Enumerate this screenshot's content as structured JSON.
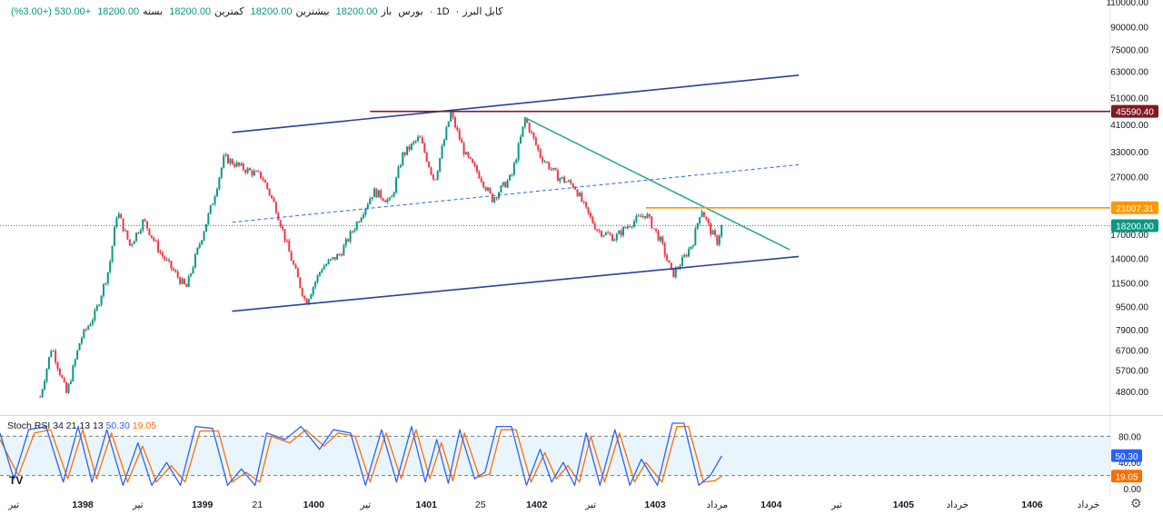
{
  "header": {
    "symbol": "کابل البرز",
    "interval": "1D",
    "exchange": "بورس",
    "open_label": "باز",
    "open_value": "18200.00",
    "high_label": "بیشترین",
    "high_value": "18200.00",
    "low_label": "کمترین",
    "low_value": "18200.00",
    "close_label": "بسته",
    "close_value": "18200.00",
    "change": "+530.00 (+3.00%)"
  },
  "colors": {
    "up": "#089981",
    "down": "#f23645",
    "channel": "#2b3fa0",
    "resistance": "#801922",
    "trend": "#22ab94",
    "horizontal_orange": "#ff9800",
    "k_line": "#2962ff",
    "d_line": "#ff6d00",
    "stoch_band": "#e3f2fd"
  },
  "chart_data": [
    {
      "type": "candlestick",
      "scale": "log",
      "ylim": [
        4000,
        110000
      ],
      "y_ticks": [
        {
          "value": 110000,
          "label": "110000.00"
        },
        {
          "value": 90000,
          "label": "90000.00"
        },
        {
          "value": 75000,
          "label": "75000.00"
        },
        {
          "value": 63000,
          "label": "63000.00"
        },
        {
          "value": 51000,
          "label": "51000.00"
        },
        {
          "value": 41000,
          "label": "41000.00"
        },
        {
          "value": 33000,
          "label": "33000.00"
        },
        {
          "value": 27000,
          "label": "27000.00"
        },
        {
          "value": 17000,
          "label": "17000.00"
        },
        {
          "value": 14000,
          "label": "14000.00"
        },
        {
          "value": 11500,
          "label": "11500.00"
        },
        {
          "value": 9500,
          "label": "9500.00"
        },
        {
          "value": 7900,
          "label": "7900.00"
        },
        {
          "value": 6700,
          "label": "6700.00"
        },
        {
          "value": 5700,
          "label": "5700.00"
        },
        {
          "value": 4800,
          "label": "4800.00"
        }
      ],
      "price_badges": [
        {
          "value": 45590.4,
          "label": "45590.40",
          "color": "#801922"
        },
        {
          "value": 21007.31,
          "label": "21007.31",
          "color": "#ff9800"
        },
        {
          "value": 18200.0,
          "label": "18200.00",
          "color": "#089981"
        }
      ],
      "x_ticks": [
        {
          "t": 0.012,
          "label": "تیر",
          "bold": false
        },
        {
          "t": 0.072,
          "label": "1398",
          "bold": true
        },
        {
          "t": 0.12,
          "label": "تیر",
          "bold": false
        },
        {
          "t": 0.176,
          "label": "1399",
          "bold": true
        },
        {
          "t": 0.224,
          "label": "21",
          "bold": false
        },
        {
          "t": 0.273,
          "label": "1400",
          "bold": true
        },
        {
          "t": 0.318,
          "label": "تیر",
          "bold": false
        },
        {
          "t": 0.371,
          "label": "1401",
          "bold": true
        },
        {
          "t": 0.418,
          "label": "25",
          "bold": false
        },
        {
          "t": 0.467,
          "label": "1402",
          "bold": true
        },
        {
          "t": 0.514,
          "label": "تیر",
          "bold": false
        },
        {
          "t": 0.57,
          "label": "1403",
          "bold": true
        },
        {
          "t": 0.624,
          "label": "مرداد",
          "bold": false
        },
        {
          "t": 0.671,
          "label": "1404",
          "bold": true
        },
        {
          "t": 0.728,
          "label": "تیر",
          "bold": false
        },
        {
          "t": 0.786,
          "label": "1405",
          "bold": true
        },
        {
          "t": 0.833,
          "label": "خرداد",
          "bold": false
        },
        {
          "t": 0.898,
          "label": "1406",
          "bold": true
        },
        {
          "t": 0.947,
          "label": "خرداد",
          "bold": false
        }
      ],
      "price_path": [
        {
          "t": 0.035,
          "v": 4600
        },
        {
          "t": 0.045,
          "v": 6900
        },
        {
          "t": 0.058,
          "v": 4700
        },
        {
          "t": 0.07,
          "v": 7300
        },
        {
          "t": 0.083,
          "v": 9000
        },
        {
          "t": 0.095,
          "v": 13000
        },
        {
          "t": 0.102,
          "v": 20500
        },
        {
          "t": 0.113,
          "v": 15500
        },
        {
          "t": 0.125,
          "v": 19000
        },
        {
          "t": 0.14,
          "v": 14500
        },
        {
          "t": 0.162,
          "v": 11000
        },
        {
          "t": 0.172,
          "v": 15000
        },
        {
          "t": 0.185,
          "v": 22000
        },
        {
          "t": 0.195,
          "v": 31500
        },
        {
          "t": 0.21,
          "v": 29000
        },
        {
          "t": 0.228,
          "v": 27000
        },
        {
          "t": 0.24,
          "v": 21000
        },
        {
          "t": 0.252,
          "v": 14500
        },
        {
          "t": 0.266,
          "v": 9800
        },
        {
          "t": 0.28,
          "v": 13000
        },
        {
          "t": 0.296,
          "v": 14500
        },
        {
          "t": 0.31,
          "v": 18500
        },
        {
          "t": 0.325,
          "v": 24000
        },
        {
          "t": 0.34,
          "v": 22000
        },
        {
          "t": 0.35,
          "v": 32000
        },
        {
          "t": 0.365,
          "v": 37000
        },
        {
          "t": 0.378,
          "v": 26000
        },
        {
          "t": 0.392,
          "v": 45000
        },
        {
          "t": 0.405,
          "v": 32000
        },
        {
          "t": 0.418,
          "v": 27000
        },
        {
          "t": 0.428,
          "v": 22500
        },
        {
          "t": 0.445,
          "v": 27000
        },
        {
          "t": 0.457,
          "v": 43000
        },
        {
          "t": 0.47,
          "v": 32000
        },
        {
          "t": 0.485,
          "v": 27000
        },
        {
          "t": 0.5,
          "v": 25000
        },
        {
          "t": 0.51,
          "v": 20500
        },
        {
          "t": 0.52,
          "v": 17500
        },
        {
          "t": 0.535,
          "v": 16500
        },
        {
          "t": 0.548,
          "v": 18500
        },
        {
          "t": 0.562,
          "v": 20000
        },
        {
          "t": 0.575,
          "v": 16000
        },
        {
          "t": 0.585,
          "v": 12200
        },
        {
          "t": 0.595,
          "v": 14000
        },
        {
          "t": 0.603,
          "v": 16000
        },
        {
          "t": 0.61,
          "v": 21000
        },
        {
          "t": 0.618,
          "v": 17500
        },
        {
          "t": 0.624,
          "v": 16000
        },
        {
          "t": 0.628,
          "v": 18200
        }
      ],
      "trendlines": [
        {
          "name": "channel-upper",
          "t1": 0.202,
          "v1": 38500,
          "t2": 0.695,
          "v2": 61000,
          "style": "solid",
          "color": "#2b3fa0"
        },
        {
          "name": "channel-lower",
          "t1": 0.202,
          "v1": 9150,
          "t2": 0.695,
          "v2": 14200,
          "style": "solid",
          "color": "#2b3fa0"
        },
        {
          "name": "channel-mid",
          "t1": 0.202,
          "v1": 18700,
          "t2": 0.695,
          "v2": 29700,
          "style": "dashed",
          "color": "#2962ff"
        },
        {
          "name": "trend-down",
          "t1": 0.456,
          "v1": 43500,
          "t2": 0.687,
          "v2": 15000,
          "style": "solid",
          "color": "#22ab94"
        },
        {
          "name": "resistance",
          "t1": 0.322,
          "v1": 45590.4,
          "t2": 1.0,
          "v2": 45590.4,
          "style": "solid",
          "color": "#801922"
        },
        {
          "name": "orange-level",
          "t1": 0.562,
          "v1": 21007.31,
          "t2": 1.0,
          "v2": 21007.31,
          "style": "solid",
          "color": "#ff9800"
        }
      ]
    },
    {
      "type": "line",
      "name": "Stoch RSI",
      "legend": "Stoch RSI 34 21 13 13",
      "k_value": "50.30",
      "d_value": "19.05",
      "ylim": [
        0,
        100
      ],
      "upper_band": 80,
      "lower_band": 20,
      "y_ticks": [
        {
          "value": 80,
          "label": "80.00"
        },
        {
          "value": 40,
          "label": "40.00"
        },
        {
          "value": 0,
          "label": "0.00"
        }
      ],
      "badges": [
        {
          "value": 50.3,
          "label": "50.30",
          "color": "#2962ff"
        },
        {
          "value": 19.05,
          "label": "19.05",
          "color": "#ff6d00"
        }
      ],
      "k_extrema": [
        {
          "t": 0.0,
          "v": 85
        },
        {
          "t": 0.012,
          "v": 15
        },
        {
          "t": 0.025,
          "v": 90
        },
        {
          "t": 0.04,
          "v": 95
        },
        {
          "t": 0.055,
          "v": 10
        },
        {
          "t": 0.068,
          "v": 95
        },
        {
          "t": 0.08,
          "v": 10
        },
        {
          "t": 0.093,
          "v": 90
        },
        {
          "t": 0.107,
          "v": 5
        },
        {
          "t": 0.12,
          "v": 70
        },
        {
          "t": 0.132,
          "v": 5
        },
        {
          "t": 0.145,
          "v": 40
        },
        {
          "t": 0.157,
          "v": 5
        },
        {
          "t": 0.17,
          "v": 95
        },
        {
          "t": 0.185,
          "v": 92
        },
        {
          "t": 0.198,
          "v": 5
        },
        {
          "t": 0.21,
          "v": 30
        },
        {
          "t": 0.222,
          "v": 5
        },
        {
          "t": 0.232,
          "v": 85
        },
        {
          "t": 0.248,
          "v": 75
        },
        {
          "t": 0.262,
          "v": 95
        },
        {
          "t": 0.278,
          "v": 60
        },
        {
          "t": 0.29,
          "v": 90
        },
        {
          "t": 0.305,
          "v": 85
        },
        {
          "t": 0.318,
          "v": 5
        },
        {
          "t": 0.332,
          "v": 90
        },
        {
          "t": 0.345,
          "v": 10
        },
        {
          "t": 0.358,
          "v": 95
        },
        {
          "t": 0.37,
          "v": 10
        },
        {
          "t": 0.38,
          "v": 75
        },
        {
          "t": 0.39,
          "v": 8
        },
        {
          "t": 0.4,
          "v": 90
        },
        {
          "t": 0.413,
          "v": 15
        },
        {
          "t": 0.422,
          "v": 25
        },
        {
          "t": 0.432,
          "v": 95
        },
        {
          "t": 0.445,
          "v": 95
        },
        {
          "t": 0.458,
          "v": 5
        },
        {
          "t": 0.47,
          "v": 60
        },
        {
          "t": 0.48,
          "v": 10
        },
        {
          "t": 0.49,
          "v": 40
        },
        {
          "t": 0.5,
          "v": 5
        },
        {
          "t": 0.51,
          "v": 85
        },
        {
          "t": 0.522,
          "v": 5
        },
        {
          "t": 0.535,
          "v": 90
        },
        {
          "t": 0.548,
          "v": 5
        },
        {
          "t": 0.558,
          "v": 45
        },
        {
          "t": 0.572,
          "v": 5
        },
        {
          "t": 0.585,
          "v": 100
        },
        {
          "t": 0.595,
          "v": 100
        },
        {
          "t": 0.608,
          "v": 5
        },
        {
          "t": 0.618,
          "v": 20
        },
        {
          "t": 0.628,
          "v": 50
        }
      ],
      "d_extrema": [
        {
          "t": 0.0,
          "v": 75
        },
        {
          "t": 0.016,
          "v": 20
        },
        {
          "t": 0.03,
          "v": 85
        },
        {
          "t": 0.044,
          "v": 90
        },
        {
          "t": 0.059,
          "v": 15
        },
        {
          "t": 0.072,
          "v": 90
        },
        {
          "t": 0.084,
          "v": 15
        },
        {
          "t": 0.097,
          "v": 85
        },
        {
          "t": 0.111,
          "v": 10
        },
        {
          "t": 0.124,
          "v": 65
        },
        {
          "t": 0.136,
          "v": 10
        },
        {
          "t": 0.149,
          "v": 35
        },
        {
          "t": 0.161,
          "v": 10
        },
        {
          "t": 0.174,
          "v": 88
        },
        {
          "t": 0.19,
          "v": 88
        },
        {
          "t": 0.202,
          "v": 10
        },
        {
          "t": 0.214,
          "v": 25
        },
        {
          "t": 0.226,
          "v": 10
        },
        {
          "t": 0.236,
          "v": 80
        },
        {
          "t": 0.252,
          "v": 70
        },
        {
          "t": 0.266,
          "v": 90
        },
        {
          "t": 0.282,
          "v": 65
        },
        {
          "t": 0.294,
          "v": 85
        },
        {
          "t": 0.309,
          "v": 80
        },
        {
          "t": 0.322,
          "v": 10
        },
        {
          "t": 0.336,
          "v": 85
        },
        {
          "t": 0.349,
          "v": 15
        },
        {
          "t": 0.362,
          "v": 90
        },
        {
          "t": 0.374,
          "v": 15
        },
        {
          "t": 0.384,
          "v": 70
        },
        {
          "t": 0.394,
          "v": 12
        },
        {
          "t": 0.404,
          "v": 85
        },
        {
          "t": 0.417,
          "v": 18
        },
        {
          "t": 0.426,
          "v": 22
        },
        {
          "t": 0.436,
          "v": 90
        },
        {
          "t": 0.449,
          "v": 90
        },
        {
          "t": 0.462,
          "v": 10
        },
        {
          "t": 0.474,
          "v": 55
        },
        {
          "t": 0.484,
          "v": 15
        },
        {
          "t": 0.494,
          "v": 35
        },
        {
          "t": 0.504,
          "v": 10
        },
        {
          "t": 0.514,
          "v": 80
        },
        {
          "t": 0.526,
          "v": 10
        },
        {
          "t": 0.539,
          "v": 85
        },
        {
          "t": 0.552,
          "v": 10
        },
        {
          "t": 0.562,
          "v": 40
        },
        {
          "t": 0.576,
          "v": 10
        },
        {
          "t": 0.589,
          "v": 95
        },
        {
          "t": 0.599,
          "v": 95
        },
        {
          "t": 0.612,
          "v": 10
        },
        {
          "t": 0.622,
          "v": 12
        },
        {
          "t": 0.628,
          "v": 19
        }
      ]
    }
  ]
}
